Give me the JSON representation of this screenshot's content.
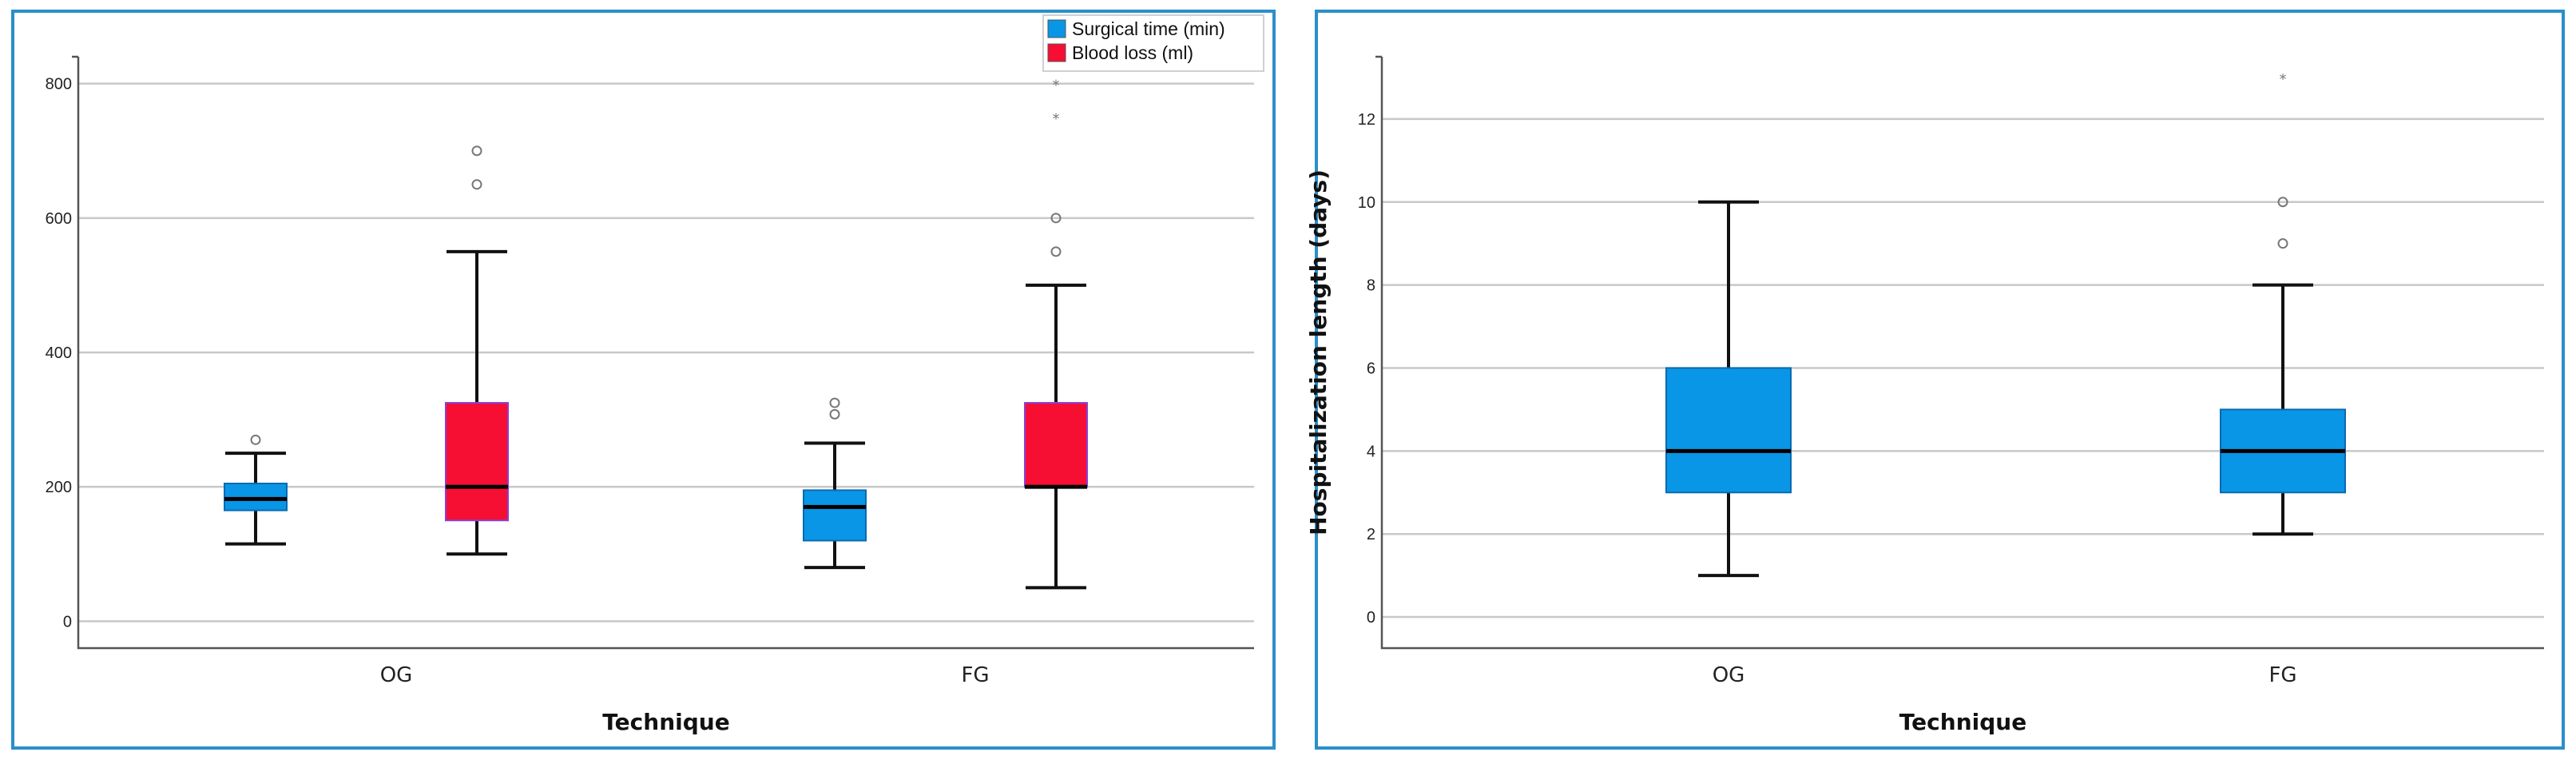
{
  "colors": {
    "blue": "#0996e6",
    "red": "#f70e33",
    "border": "#2a8fcc"
  },
  "chart_data": [
    {
      "type": "box",
      "title": "",
      "xlabel": "Technique",
      "ylabel": "",
      "ylim": [
        -40,
        840
      ],
      "yticks": [
        "0",
        "200",
        "400",
        "600",
        "800"
      ],
      "categories": [
        "OG",
        "FG"
      ],
      "legend": {
        "position": "top-right",
        "entries": [
          "Surgical time (min)",
          "Blood loss (ml)"
        ]
      },
      "series": [
        {
          "name": "Surgical time (min)",
          "color": "#0996e6",
          "boxes": [
            {
              "category": "OG",
              "whisker_low": 115,
              "q1": 165,
              "median": 182,
              "q3": 205,
              "whisker_high": 250,
              "outliers": [
                {
                  "value": 270,
                  "marker": "o"
                }
              ]
            },
            {
              "category": "FG",
              "whisker_low": 80,
              "q1": 120,
              "median": 170,
              "q3": 195,
              "whisker_high": 265,
              "outliers": [
                {
                  "value": 308,
                  "marker": "o"
                },
                {
                  "value": 325,
                  "marker": "o"
                }
              ]
            }
          ]
        },
        {
          "name": "Blood loss (ml)",
          "color": "#f70e33",
          "boxes": [
            {
              "category": "OG",
              "whisker_low": 100,
              "q1": 150,
              "median": 200,
              "q3": 325,
              "whisker_high": 550,
              "outliers": [
                {
                  "value": 650,
                  "marker": "o"
                },
                {
                  "value": 700,
                  "marker": "o"
                }
              ]
            },
            {
              "category": "FG",
              "whisker_low": 50,
              "q1": 200,
              "median": 200,
              "q3": 325,
              "whisker_high": 500,
              "outliers": [
                {
                  "value": 550,
                  "marker": "o"
                },
                {
                  "value": 600,
                  "marker": "o"
                },
                {
                  "value": 750,
                  "marker": "*"
                },
                {
                  "value": 800,
                  "marker": "*"
                }
              ]
            }
          ]
        }
      ]
    },
    {
      "type": "box",
      "title": "",
      "xlabel": "Technique",
      "ylabel": "Hospitalization length (days)",
      "ylim": [
        -0.75,
        13.5
      ],
      "yticks": [
        "0",
        "2",
        "4",
        "6",
        "8",
        "10",
        "12"
      ],
      "categories": [
        "OG",
        "FG"
      ],
      "series": [
        {
          "name": "Hospitalization length (days)",
          "color": "#0996e6",
          "boxes": [
            {
              "category": "OG",
              "whisker_low": 1,
              "q1": 3,
              "median": 4,
              "q3": 6,
              "whisker_high": 10,
              "outliers": []
            },
            {
              "category": "FG",
              "whisker_low": 2,
              "q1": 3,
              "median": 4,
              "q3": 5,
              "whisker_high": 8,
              "outliers": [
                {
                  "value": 9,
                  "marker": "o"
                },
                {
                  "value": 10,
                  "marker": "o"
                },
                {
                  "value": 13,
                  "marker": "*"
                }
              ]
            }
          ]
        }
      ]
    }
  ]
}
